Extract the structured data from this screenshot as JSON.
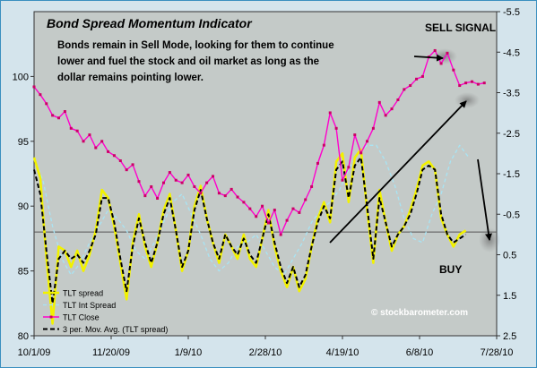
{
  "chart_data": {
    "type": "line",
    "title": "Bond Spread Momentum Indicator",
    "annotation": "Bonds remain in Sell Mode, looking for them to continue lower and fuel the stock and oil market as long as the dollar remains pointing lower.",
    "sell_label": "SELL SIGNAL",
    "buy_label": "BUY",
    "watermark": "© stockbarometer.com",
    "x_ticks": [
      "10/1/09",
      "11/20/09",
      "1/9/10",
      "2/28/10",
      "4/19/10",
      "6/8/10",
      "7/28/10"
    ],
    "x_range": [
      0,
      300
    ],
    "x_tick_positions": [
      0,
      50,
      100,
      150,
      200,
      250,
      300
    ],
    "y_left": {
      "range": [
        80,
        105
      ],
      "ticks": [
        "80",
        "85",
        "90",
        "95",
        "100"
      ]
    },
    "y_right": {
      "range": [
        -5.5,
        2.5
      ],
      "inverted": true,
      "ticks": [
        "-5.5",
        "-4.5",
        "-3.5",
        "-2.5",
        "-1.5",
        "-0.5",
        "0.5",
        "1.5",
        "2.5"
      ]
    },
    "grid": {
      "horizontal": [
        88
      ],
      "vertical": []
    },
    "legend_position": "bottom-left",
    "colors": {
      "plot_bg": "#c4cac8",
      "frame_bg": "#d4e4ec",
      "border": "#3a8fbf",
      "tlt_spread": "#f2f200",
      "tlt_int": "#a8e4f4",
      "tlt_close": "#ff00cc",
      "mov_avg": "#000000"
    },
    "series": [
      {
        "name": "TLT spread",
        "axis": "right",
        "color": "#f2f200",
        "x": [
          0,
          4,
          8,
          12,
          16,
          20,
          24,
          28,
          32,
          36,
          40,
          44,
          48,
          52,
          56,
          60,
          64,
          68,
          72,
          76,
          80,
          84,
          88,
          92,
          96,
          100,
          104,
          108,
          112,
          116,
          120,
          124,
          128,
          132,
          136,
          140,
          144,
          148,
          152,
          156,
          160,
          164,
          168,
          172,
          176,
          180,
          184,
          188,
          192,
          196,
          200,
          204,
          208,
          212,
          216,
          220,
          224,
          228,
          232,
          236,
          240,
          244,
          248,
          252,
          256,
          260,
          264,
          268,
          272,
          276,
          280
        ],
        "values": [
          -1.9,
          -1.4,
          0.6,
          2.2,
          0.3,
          0.4,
          0.8,
          0.4,
          0.9,
          0.5,
          -0.1,
          -1.1,
          -0.9,
          -0.2,
          0.7,
          1.6,
          0.2,
          -0.5,
          0.3,
          0.8,
          0.2,
          -0.6,
          -1.0,
          -0.1,
          0.9,
          0.4,
          -0.7,
          -1.2,
          -0.4,
          0.2,
          0.7,
          0.0,
          0.3,
          0.6,
          0.0,
          0.6,
          0.8,
          0.1,
          -0.6,
          0.3,
          0.9,
          1.3,
          0.8,
          1.4,
          1.1,
          0.3,
          -0.4,
          -0.8,
          -0.3,
          -1.8,
          -2.0,
          -0.8,
          -1.9,
          -2.1,
          -0.6,
          0.7,
          -1.1,
          -0.3,
          0.4,
          0.0,
          -0.2,
          -0.6,
          -1.1,
          -1.7,
          -1.8,
          -1.6,
          -0.4,
          0.0,
          0.3,
          0.0,
          -0.1
        ]
      },
      {
        "name": "TLT Int Spread",
        "axis": "right",
        "color": "#a8e4f4",
        "x": [
          0,
          6,
          12,
          18,
          24,
          30,
          36,
          42,
          48,
          54,
          60,
          66,
          72,
          78,
          84,
          90,
          96,
          102,
          108,
          114,
          120,
          126,
          132,
          138,
          144,
          150,
          156,
          162,
          168,
          174,
          180,
          186,
          192,
          198,
          204,
          210,
          216,
          222,
          228,
          234,
          240,
          246,
          252,
          258,
          264,
          270,
          276,
          282
        ],
        "values": [
          -1.9,
          -1.3,
          -0.2,
          0.6,
          1.0,
          0.7,
          0.2,
          -0.2,
          -0.6,
          -0.4,
          -0.1,
          0.4,
          0.6,
          0.2,
          -0.3,
          -0.8,
          -1.0,
          -0.5,
          0.0,
          0.6,
          0.9,
          0.7,
          0.3,
          0.2,
          0.0,
          0.4,
          0.8,
          1.0,
          0.6,
          0.2,
          -0.3,
          -0.6,
          -0.8,
          -1.1,
          -1.6,
          -2.0,
          -2.2,
          -2.2,
          -1.8,
          -1.2,
          -0.4,
          0.1,
          0.2,
          -0.5,
          -1.0,
          -1.8,
          -2.2,
          -1.9
        ]
      },
      {
        "name": "TLT Close",
        "axis": "left",
        "color": "#ff00cc",
        "x": [
          0,
          4,
          8,
          12,
          16,
          20,
          24,
          28,
          32,
          36,
          40,
          44,
          48,
          52,
          56,
          60,
          64,
          68,
          72,
          76,
          80,
          84,
          88,
          92,
          96,
          100,
          104,
          108,
          112,
          116,
          120,
          124,
          128,
          132,
          136,
          140,
          144,
          148,
          152,
          156,
          160,
          164,
          168,
          172,
          176,
          180,
          184,
          188,
          192,
          196,
          200,
          204,
          208,
          212,
          216,
          220,
          224,
          228,
          232,
          236,
          240,
          244,
          248,
          252,
          256,
          260,
          264,
          268,
          272,
          276,
          280,
          284,
          288,
          292
        ],
        "values": [
          99.2,
          98.6,
          97.9,
          97.0,
          96.8,
          97.3,
          96.0,
          95.8,
          95.0,
          95.5,
          94.5,
          95.0,
          94.2,
          93.9,
          93.5,
          92.8,
          93.2,
          91.9,
          90.8,
          91.5,
          90.6,
          91.8,
          92.6,
          92.0,
          91.8,
          92.4,
          91.5,
          91.0,
          91.8,
          92.3,
          91.0,
          90.8,
          91.3,
          90.7,
          90.3,
          89.8,
          89.2,
          90.0,
          88.7,
          89.7,
          87.8,
          88.9,
          89.8,
          89.5,
          90.5,
          91.5,
          93.3,
          94.7,
          97.2,
          96.0,
          92.0,
          93.0,
          95.5,
          94.1,
          95.0,
          96.0,
          98.0,
          97.0,
          97.5,
          98.2,
          99.0,
          99.3,
          99.8,
          100.0,
          101.5,
          102.0,
          101.0,
          101.8,
          100.5,
          99.3,
          99.5,
          99.6,
          99.4,
          99.5
        ]
      },
      {
        "name": "3 per. Mov. Avg. (TLT spread)",
        "axis": "right",
        "color": "#000000",
        "x": [
          0,
          4,
          8,
          12,
          16,
          20,
          24,
          28,
          32,
          36,
          40,
          44,
          48,
          52,
          56,
          60,
          64,
          68,
          72,
          76,
          80,
          84,
          88,
          92,
          96,
          100,
          104,
          108,
          112,
          116,
          120,
          124,
          128,
          132,
          136,
          140,
          144,
          148,
          152,
          156,
          160,
          164,
          168,
          172,
          176,
          180,
          184,
          188,
          192,
          196,
          200,
          204,
          208,
          212,
          216,
          220,
          224,
          228,
          232,
          236,
          240,
          244,
          248,
          252,
          256,
          260,
          264,
          268,
          272,
          276,
          280
        ],
        "values": [
          -1.6,
          -1.0,
          0.4,
          1.7,
          0.6,
          0.4,
          0.6,
          0.5,
          0.7,
          0.4,
          0.0,
          -0.9,
          -0.9,
          -0.3,
          0.6,
          1.4,
          0.3,
          -0.4,
          0.2,
          0.7,
          0.2,
          -0.5,
          -0.9,
          -0.1,
          0.8,
          0.4,
          -0.6,
          -1.1,
          -0.4,
          0.2,
          0.6,
          0.0,
          0.3,
          0.5,
          0.1,
          0.5,
          0.7,
          0.1,
          -0.5,
          0.2,
          0.8,
          1.2,
          0.8,
          1.3,
          1.0,
          0.3,
          -0.3,
          -0.7,
          -0.4,
          -1.6,
          -1.8,
          -0.9,
          -1.7,
          -1.9,
          -0.7,
          0.6,
          -0.9,
          -0.3,
          0.3,
          0.0,
          -0.2,
          -0.5,
          -1.0,
          -1.6,
          -1.7,
          -1.6,
          -0.5,
          0.0,
          0.2,
          0.1,
          0.0
        ]
      }
    ]
  }
}
